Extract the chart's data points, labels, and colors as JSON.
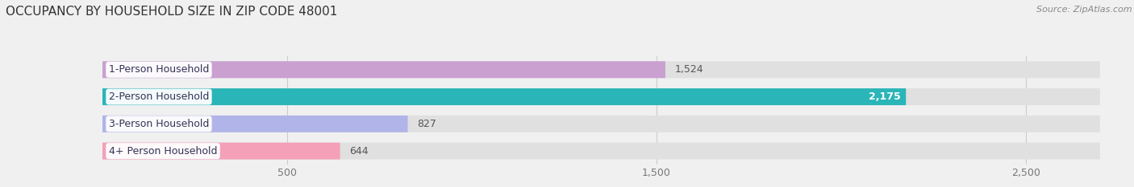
{
  "title": "OCCUPANCY BY HOUSEHOLD SIZE IN ZIP CODE 48001",
  "source": "Source: ZipAtlas.com",
  "categories": [
    "1-Person Household",
    "2-Person Household",
    "3-Person Household",
    "4+ Person Household"
  ],
  "values": [
    1524,
    2175,
    827,
    644
  ],
  "bar_colors": [
    "#c9a0d0",
    "#2ab5b8",
    "#b0b4e8",
    "#f4a0b8"
  ],
  "value_label_inside": [
    false,
    true,
    false,
    false
  ],
  "xlim_max": 2700,
  "xticks": [
    500,
    1500,
    2500
  ],
  "background_color": "#f0f0f0",
  "bar_bg_color": "#e0e0e0",
  "title_fontsize": 11,
  "label_fontsize": 9,
  "tick_fontsize": 9
}
